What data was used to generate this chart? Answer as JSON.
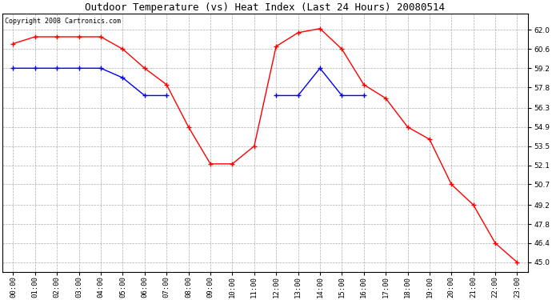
{
  "title": "Outdoor Temperature (vs) Heat Index (Last 24 Hours) 20080514",
  "copyright_text": "Copyright 2008 Cartronics.com",
  "hours": [
    "00:00",
    "01:00",
    "02:00",
    "03:00",
    "04:00",
    "05:00",
    "06:00",
    "07:00",
    "08:00",
    "09:00",
    "10:00",
    "11:00",
    "12:00",
    "13:00",
    "14:00",
    "15:00",
    "16:00",
    "17:00",
    "18:00",
    "19:00",
    "20:00",
    "21:00",
    "22:00",
    "23:00"
  ],
  "red_data": [
    61.0,
    61.5,
    61.5,
    61.5,
    61.5,
    60.6,
    59.2,
    58.0,
    54.9,
    52.2,
    52.2,
    53.5,
    60.8,
    61.8,
    62.1,
    60.6,
    58.0,
    57.0,
    54.9,
    54.0,
    50.7,
    49.2,
    46.4,
    45.0
  ],
  "blue_data": [
    59.2,
    59.2,
    59.2,
    59.2,
    59.2,
    58.5,
    57.2,
    57.2,
    null,
    null,
    null,
    null,
    57.2,
    57.2,
    59.2,
    57.2,
    57.2,
    null,
    null,
    null,
    null,
    null,
    null,
    null
  ],
  "red_color": "#FF0000",
  "blue_color": "#0000FF",
  "background_color": "#FFFFFF",
  "grid_color": "#999999",
  "ylim": [
    44.3,
    63.2
  ],
  "yticks": [
    45.0,
    46.4,
    47.8,
    49.2,
    50.7,
    52.1,
    53.5,
    54.9,
    56.3,
    57.8,
    59.2,
    60.6,
    62.0
  ],
  "title_fontsize": 9,
  "copyright_fontsize": 6,
  "tick_fontsize": 6.5
}
